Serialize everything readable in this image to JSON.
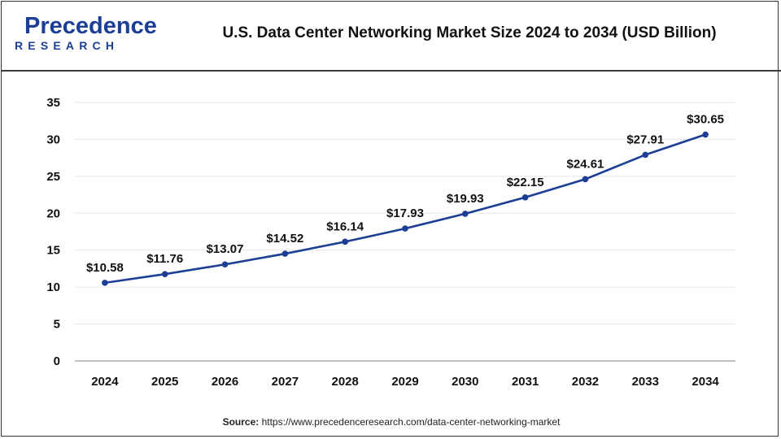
{
  "header": {
    "brand_main": "Precedence",
    "brand_sub": "RESEARCH",
    "title": "U.S. Data Center Networking Market Size 2024 to 2034 (USD Billion)"
  },
  "source": {
    "label": "Source:",
    "url": "https://www.precedenceresearch.com/data-center-networking-market"
  },
  "colors": {
    "line": "#1c3f95",
    "brand": "#1c3f95",
    "grid": "#e6e6e6"
  },
  "chart_data": {
    "type": "line",
    "title": "U.S. Data Center Networking Market Size 2024 to 2034 (USD Billion)",
    "xlabel": "",
    "ylabel": "",
    "categories": [
      "2024",
      "2025",
      "2026",
      "2027",
      "2028",
      "2029",
      "2030",
      "2031",
      "2032",
      "2033",
      "2034"
    ],
    "series": [
      {
        "values": [
          10.58,
          11.76,
          13.07,
          14.52,
          16.14,
          17.93,
          19.93,
          22.15,
          24.61,
          27.91,
          30.65
        ],
        "labels": [
          "$10.58",
          "$11.76",
          "$13.07",
          "$14.52",
          "$16.14",
          "$17.93",
          "$19.93",
          "$22.15",
          "$24.61",
          "$27.91",
          "$30.65"
        ]
      }
    ],
    "ylim": [
      0,
      35
    ],
    "yticks": [
      "0",
      "5",
      "10",
      "15",
      "20",
      "25",
      "30",
      "35"
    ],
    "grid": true,
    "legend": "none"
  }
}
